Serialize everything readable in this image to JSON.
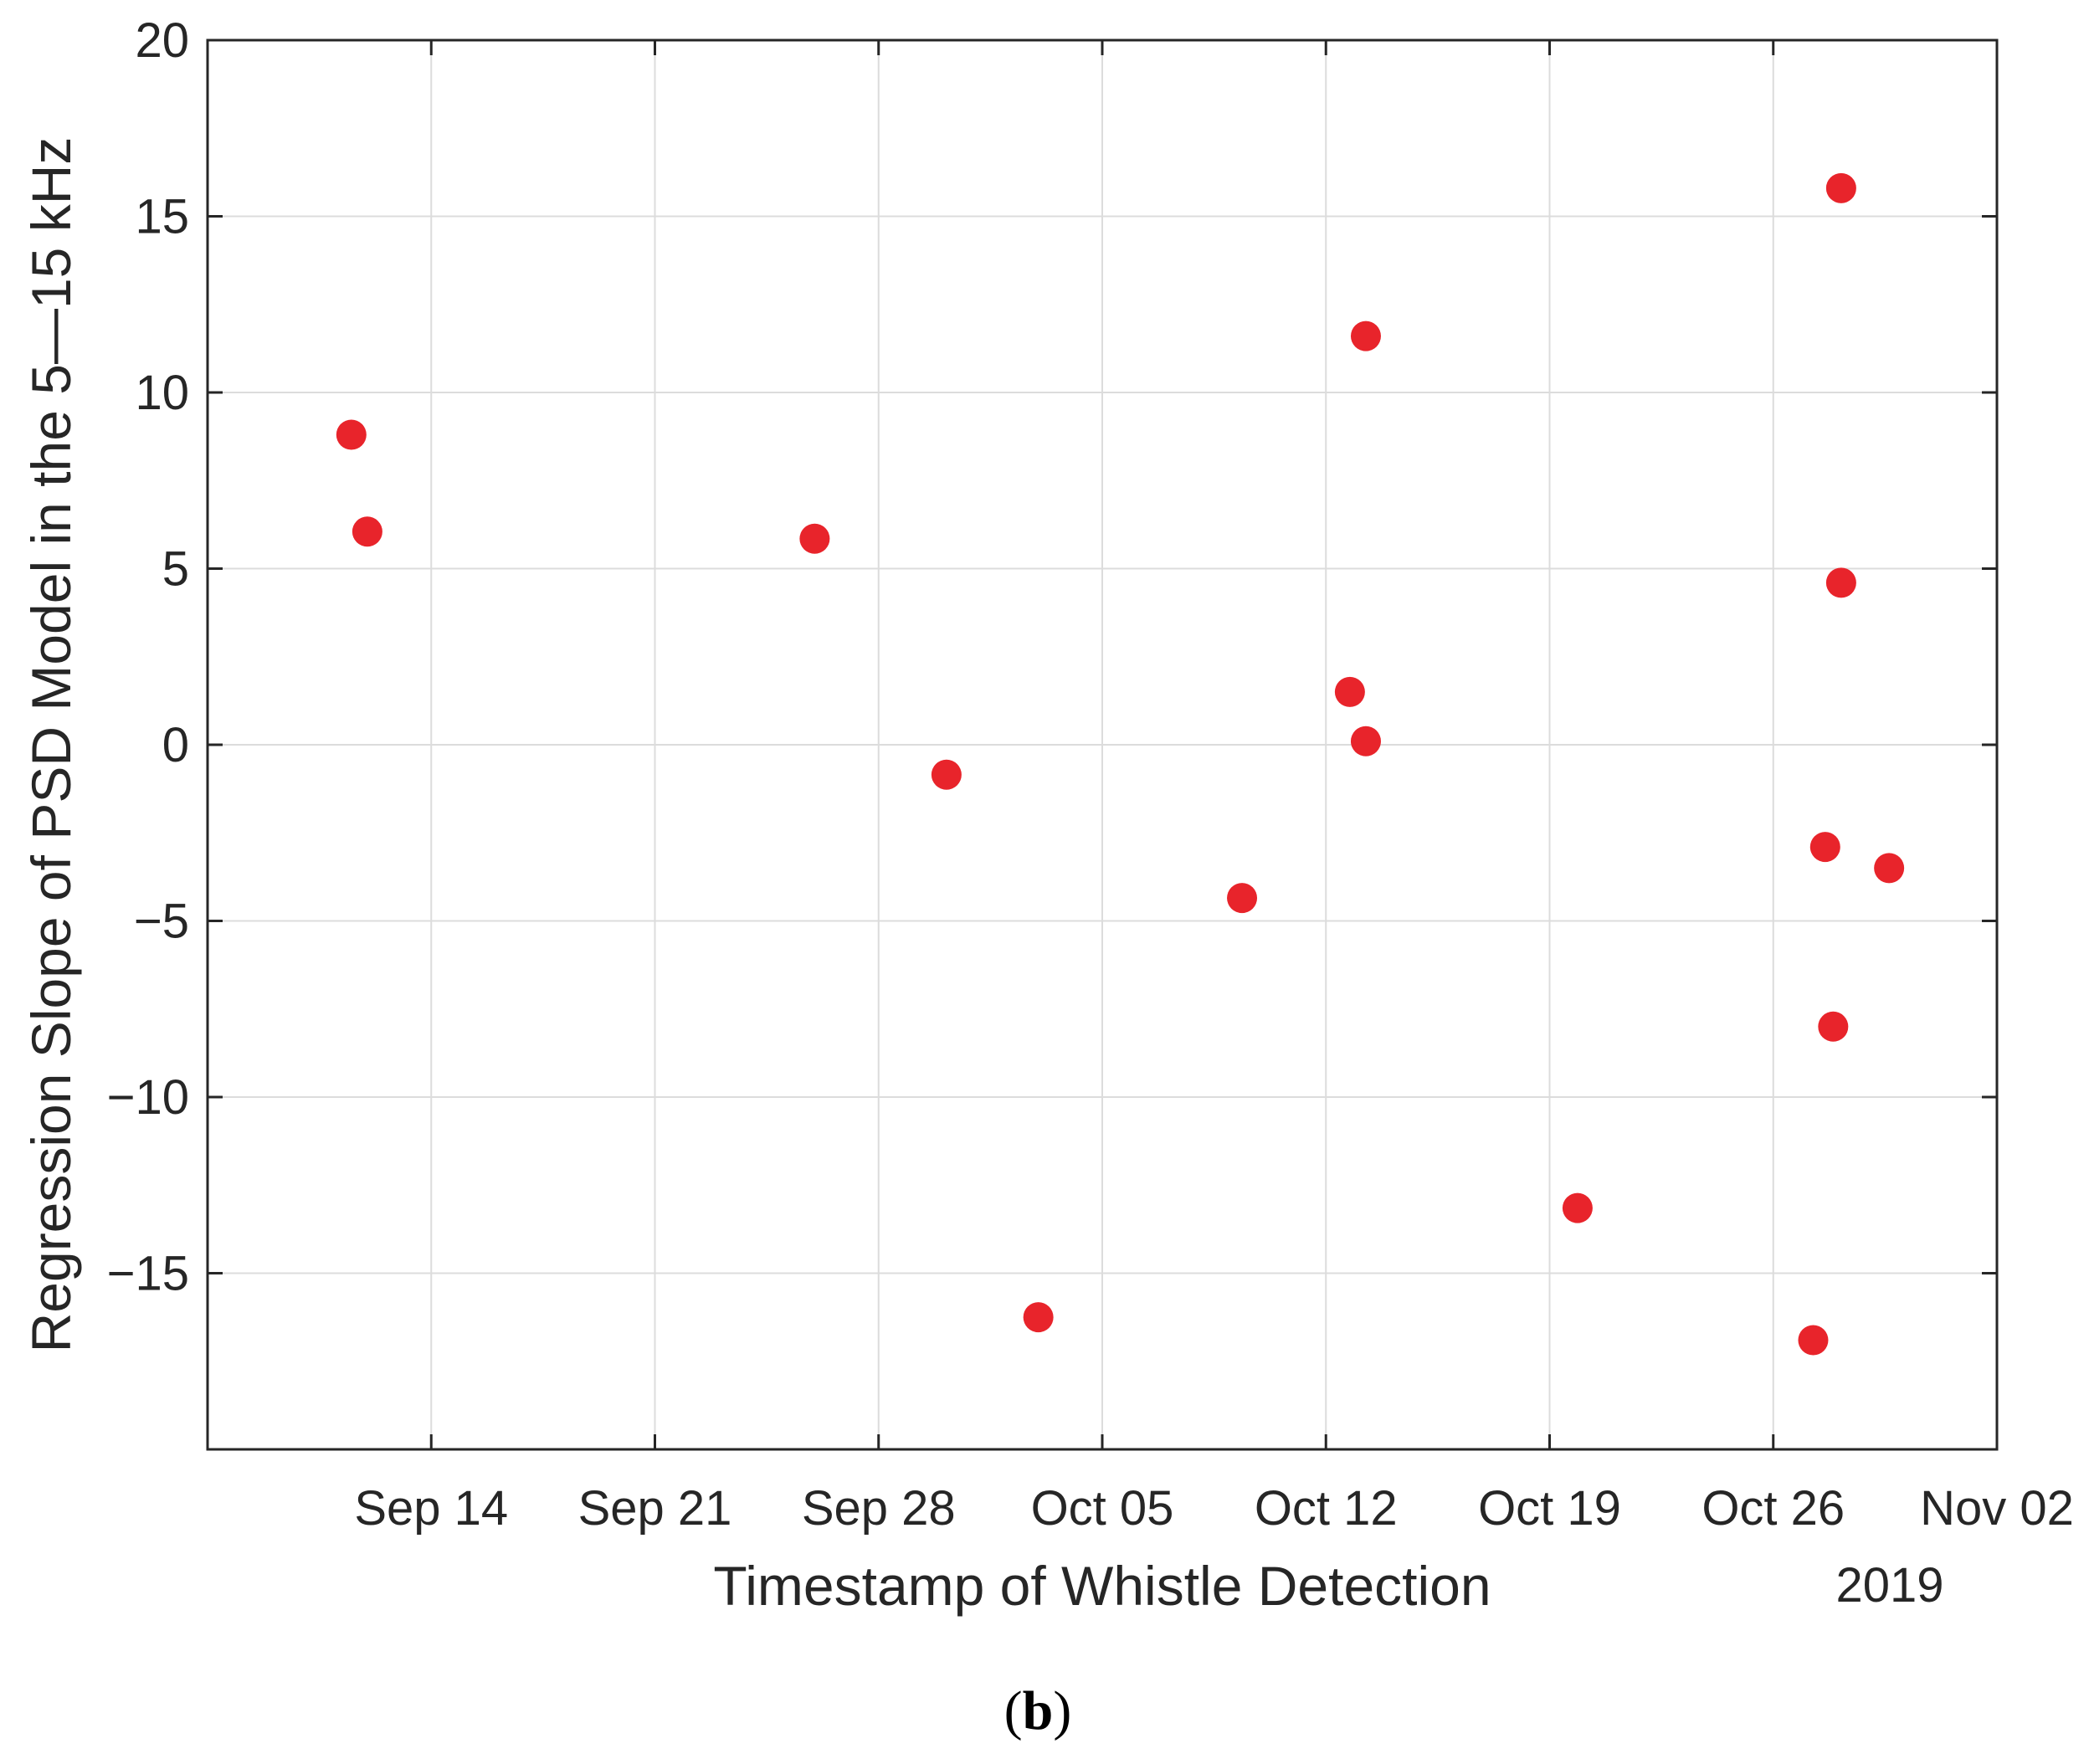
{
  "chart_data": {
    "type": "scatter",
    "xlabel": "Timestamp of Whistle Detection",
    "ylabel": "Regression Slope of PSD Model in the 5—15 kHz",
    "x_secondary_label": "2019",
    "xlim": [
      "2019-09-07",
      "2019-11-02"
    ],
    "ylim": [
      -20,
      20
    ],
    "x_ticks": [
      "2019-09-14",
      "2019-09-21",
      "2019-09-28",
      "2019-10-05",
      "2019-10-12",
      "2019-10-19",
      "2019-10-26",
      "2019-11-02"
    ],
    "x_tick_labels": [
      "Sep 14",
      "Sep 21",
      "Sep 28",
      "Oct 05",
      "Oct 12",
      "Oct 19",
      "Oct 26",
      "Nov 02"
    ],
    "y_ticks": [
      20,
      15,
      10,
      5,
      0,
      -5,
      -10,
      -15
    ],
    "y_tick_labels": [
      "20",
      "15",
      "10",
      "5",
      "0",
      "−5",
      "−10",
      "−15"
    ],
    "grid": true,
    "marker_color": "#e8242b",
    "points": [
      {
        "x": "2019-09-11T12:00",
        "y": 8.8
      },
      {
        "x": "2019-09-12T00:00",
        "y": 6.05
      },
      {
        "x": "2019-09-26T00:00",
        "y": 5.85
      },
      {
        "x": "2019-09-30T03:00",
        "y": -0.85
      },
      {
        "x": "2019-10-03T00:00",
        "y": -16.25
      },
      {
        "x": "2019-10-09T09:00",
        "y": -4.35
      },
      {
        "x": "2019-10-12T18:00",
        "y": 1.5
      },
      {
        "x": "2019-10-13T06:00",
        "y": 11.6
      },
      {
        "x": "2019-10-13T06:00",
        "y": 0.1
      },
      {
        "x": "2019-10-19T21:00",
        "y": -13.15
      },
      {
        "x": "2019-10-27T06:00",
        "y": -16.9
      },
      {
        "x": "2019-10-27T15:00",
        "y": -2.9
      },
      {
        "x": "2019-10-27T21:00",
        "y": -8.0
      },
      {
        "x": "2019-10-28T03:00",
        "y": 15.8
      },
      {
        "x": "2019-10-28T03:00",
        "y": 4.6
      },
      {
        "x": "2019-10-29T15:00",
        "y": -3.5
      }
    ]
  },
  "caption": {
    "open": "(",
    "letter": "b",
    "close": ")"
  }
}
